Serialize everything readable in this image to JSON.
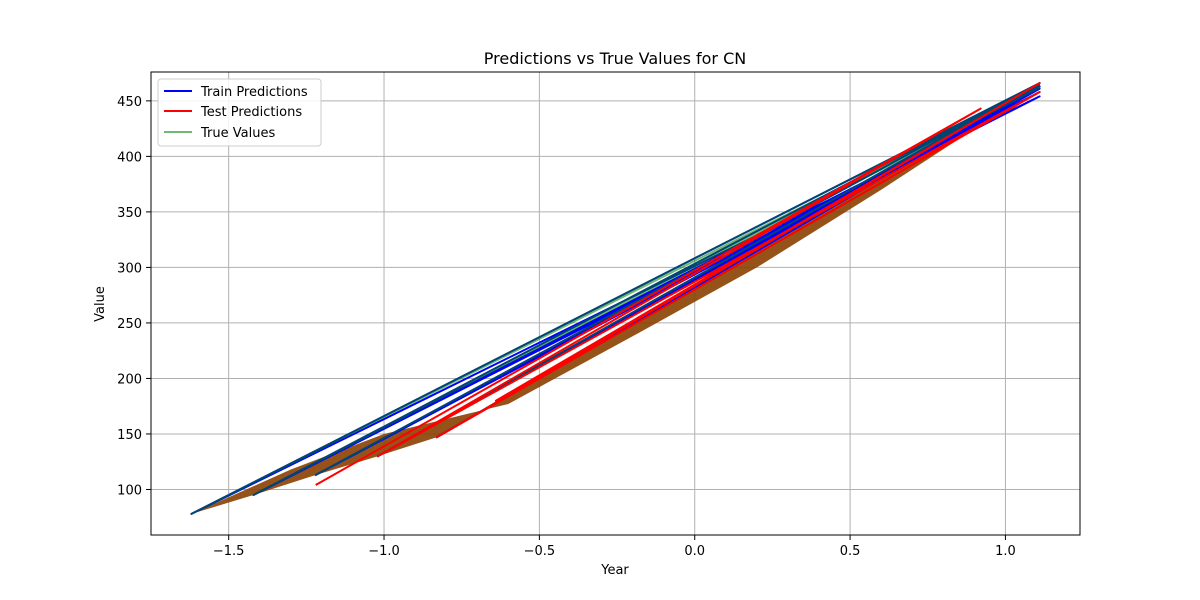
{
  "chart_data": {
    "type": "line",
    "title": "Predictions vs True Values for CN",
    "xlabel": "Year",
    "ylabel": "Value",
    "xlim": [
      -1.75,
      1.24
    ],
    "ylim": [
      59,
      476
    ],
    "xticks": [
      -1.5,
      -1.0,
      -0.5,
      0.0,
      0.5,
      1.0
    ],
    "xtick_labels": [
      "−1.5",
      "−1.0",
      "−0.5",
      "0.0",
      "0.5",
      "1.0"
    ],
    "yticks": [
      100,
      150,
      200,
      250,
      300,
      350,
      400,
      450
    ],
    "ytick_labels": [
      "100",
      "150",
      "200",
      "250",
      "300",
      "350",
      "400",
      "450"
    ],
    "grid": true,
    "legend_position": "top-left",
    "series": [
      {
        "name": "Train Predictions",
        "color": "#0000ff",
        "opacity": 1.0,
        "x": [
          -1.62,
          1.11,
          -1.42,
          1.11,
          -1.22,
          1.11,
          -1.02,
          1.11,
          -0.83,
          1.11,
          -1.62,
          1.11,
          -1.42,
          1.11,
          -1.22,
          1.11,
          -1.02,
          1.11,
          -0.83,
          1.11
        ],
        "y": [
          78,
          466,
          95,
          466,
          113,
          466,
          130,
          466,
          147,
          466,
          78,
          454,
          95,
          458,
          113,
          461,
          130,
          463,
          147,
          465
        ]
      },
      {
        "name": "Test Predictions",
        "color": "#ff0000",
        "opacity": 1.0,
        "x": [
          -1.22,
          0.92,
          -1.02,
          1.11,
          -0.83,
          1.11,
          -0.64,
          1.11
        ],
        "y": [
          104,
          443,
          130,
          458,
          147,
          466,
          180,
          466
        ]
      },
      {
        "name": "True Values",
        "color": "#008000",
        "opacity": 0.55,
        "x": [
          -1.62,
          1.11,
          -1.42,
          1.11,
          -1.22,
          1.11,
          -1.02,
          1.11,
          -0.83,
          1.11,
          -1.62,
          1.11,
          -1.42,
          1.11
        ],
        "y": [
          78,
          466,
          95,
          466,
          113,
          466,
          130,
          466,
          147,
          466,
          78,
          462,
          95,
          464
        ]
      }
    ],
    "band": {
      "color": "#8b4000",
      "opacity": 0.9,
      "x": [
        -1.62,
        -1.42,
        -1.22,
        -1.02,
        -0.83,
        1.11,
        1.11,
        0.6,
        0.2,
        -0.2,
        -0.6,
        -1.0,
        -1.3,
        -1.62
      ],
      "y": [
        78,
        95,
        113,
        130,
        147,
        466,
        463,
        370,
        300,
        238,
        177,
        150,
        118,
        78
      ]
    }
  }
}
